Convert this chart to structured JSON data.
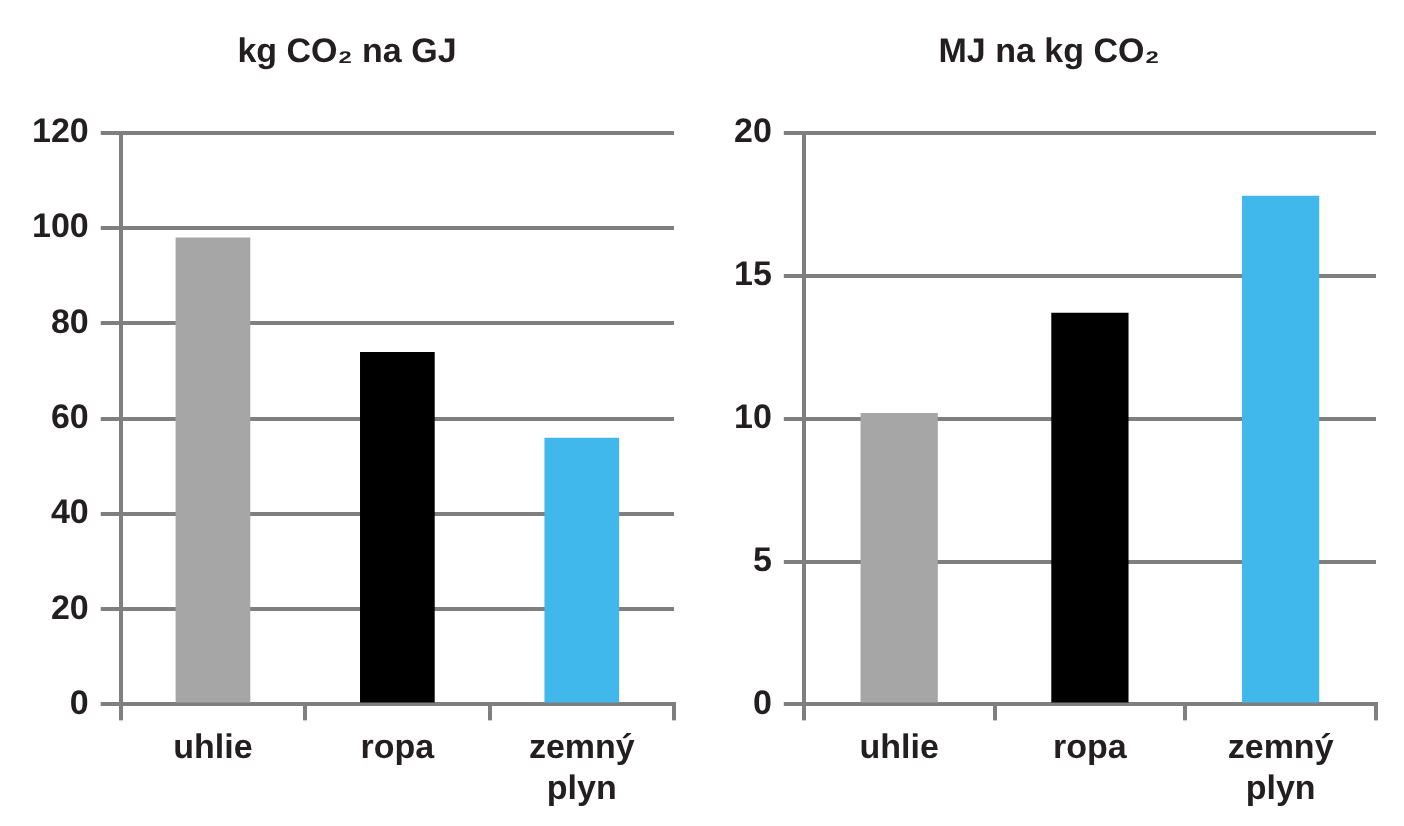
{
  "chart_data": [
    {
      "type": "bar",
      "title": "kg CO₂ na GJ",
      "categories": [
        "uhlie",
        "ropa",
        "zemný plyn"
      ],
      "values": [
        98,
        74,
        56
      ],
      "colors": [
        "#a6a6a6",
        "#000000",
        "#41b8eb"
      ],
      "ylim": [
        0,
        120
      ],
      "yticks": [
        0,
        20,
        40,
        60,
        80,
        100,
        120
      ],
      "grid": "y"
    },
    {
      "type": "bar",
      "title": "MJ na kg CO₂",
      "categories": [
        "uhlie",
        "ropa",
        "zemný plyn"
      ],
      "values": [
        10.2,
        13.7,
        17.8
      ],
      "colors": [
        "#a6a6a6",
        "#000000",
        "#41b8eb"
      ],
      "ylim": [
        0,
        20
      ],
      "yticks": [
        0,
        5,
        10,
        15,
        20
      ],
      "grid": "y"
    }
  ]
}
